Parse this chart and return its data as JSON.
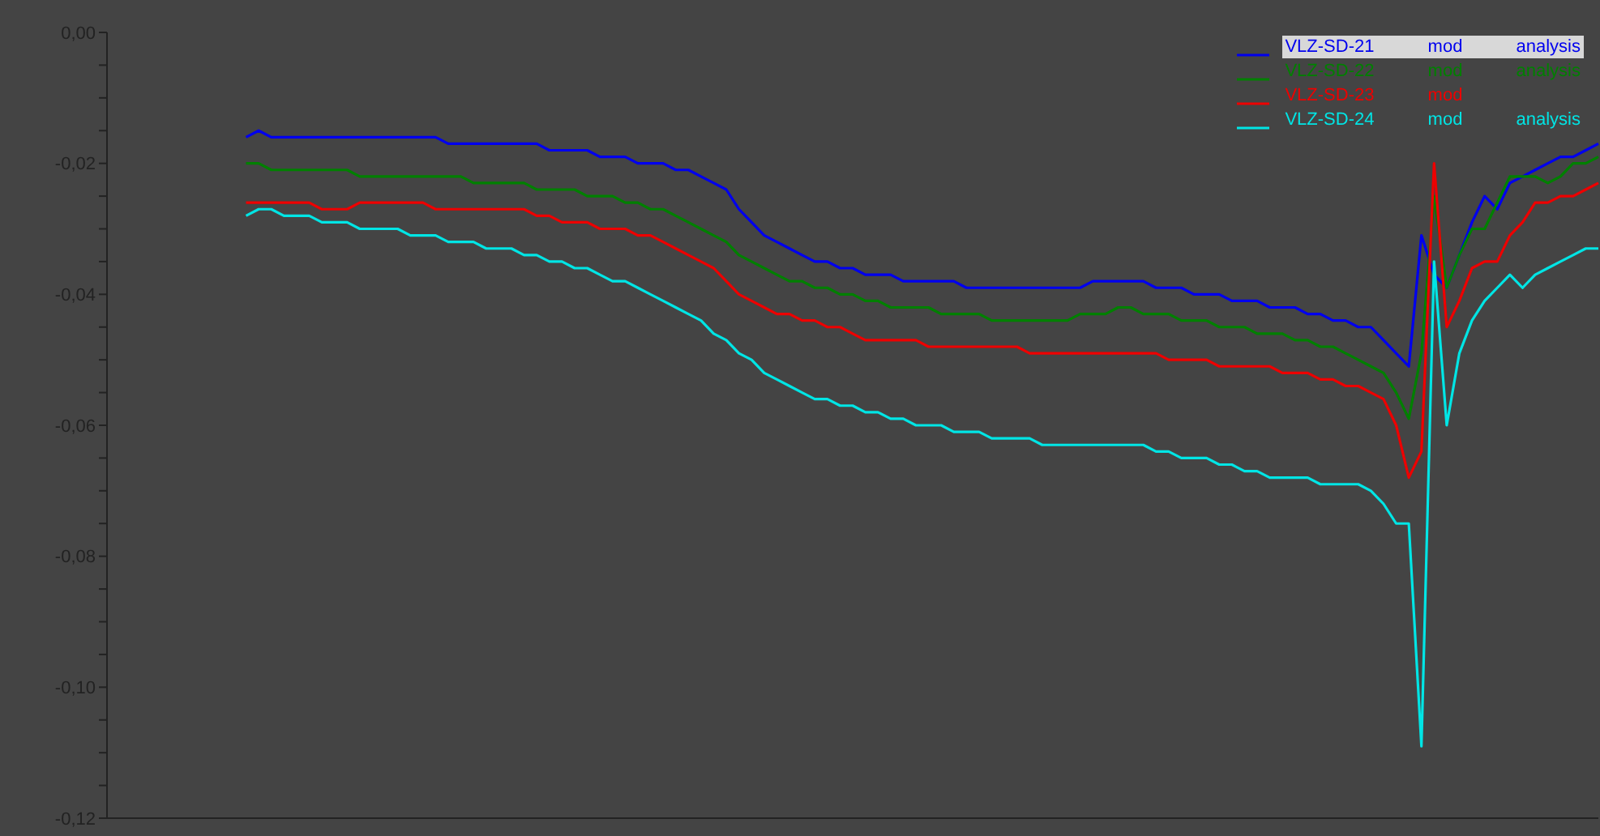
{
  "chart_data": {
    "type": "line",
    "categories": [
      null,
      null,
      null,
      null,
      null,
      null,
      null,
      null,
      null,
      null,
      null,
      null,
      null,
      null,
      null,
      null,
      null,
      null,
      null,
      null,
      null,
      null,
      null,
      null,
      null,
      null,
      null,
      null,
      null,
      null,
      null,
      null,
      null,
      null,
      null,
      null,
      null,
      null,
      null,
      null,
      null,
      null,
      null,
      null,
      null,
      null,
      null,
      null,
      null,
      null,
      null,
      null,
      null,
      null,
      null,
      null,
      null,
      null,
      null,
      null,
      null,
      null,
      null,
      null,
      null,
      null,
      null,
      null,
      null,
      null,
      null,
      null,
      null,
      null,
      null,
      null,
      null,
      null,
      null,
      null,
      null,
      null,
      null,
      null,
      null,
      null,
      null,
      null,
      null,
      null,
      null,
      null,
      null,
      null,
      null,
      null,
      null,
      null,
      null,
      null,
      null,
      null,
      null,
      null,
      null,
      null,
      null,
      null,
      null,
      null,
      null,
      null,
      null,
      null,
      null,
      null,
      null,
      null,
      null
    ],
    "series": [
      {
        "name": "VLZ-SD-21 mod analysis",
        "color": "#0000ee",
        "values": [
          null,
          null,
          null,
          null,
          null,
          null,
          null,
          null,
          null,
          null,
          null,
          -0.016,
          -0.015,
          -0.016,
          -0.016,
          -0.016,
          -0.016,
          -0.016,
          -0.016,
          -0.016,
          -0.016,
          -0.016,
          -0.016,
          -0.016,
          -0.016,
          -0.016,
          -0.016,
          -0.017,
          -0.017,
          -0.017,
          -0.017,
          -0.017,
          -0.017,
          -0.017,
          -0.017,
          -0.018,
          -0.018,
          -0.018,
          -0.018,
          -0.019,
          -0.019,
          -0.019,
          -0.02,
          -0.02,
          -0.02,
          -0.021,
          -0.021,
          -0.022,
          -0.023,
          -0.024,
          -0.027,
          -0.029,
          -0.031,
          -0.032,
          -0.033,
          -0.034,
          -0.035,
          -0.035,
          -0.036,
          -0.036,
          -0.037,
          -0.037,
          -0.037,
          -0.038,
          -0.038,
          -0.038,
          -0.038,
          -0.038,
          -0.039,
          -0.039,
          -0.039,
          -0.039,
          -0.039,
          -0.039,
          -0.039,
          -0.039,
          -0.039,
          -0.039,
          -0.038,
          -0.038,
          -0.038,
          -0.038,
          -0.038,
          -0.039,
          -0.039,
          -0.039,
          -0.04,
          -0.04,
          -0.04,
          -0.041,
          -0.041,
          -0.041,
          -0.042,
          -0.042,
          -0.042,
          -0.043,
          -0.043,
          -0.044,
          -0.044,
          -0.045,
          -0.045,
          -0.047,
          -0.049,
          -0.051,
          -0.031,
          -0.037,
          -0.039,
          -0.034,
          -0.029,
          -0.025,
          -0.027,
          -0.023,
          -0.022,
          -0.021,
          -0.02,
          -0.019,
          -0.019,
          -0.018,
          -0.017
        ]
      },
      {
        "name": "VLZ-SD-22 mod analysis",
        "color": "#008000",
        "values": [
          null,
          null,
          null,
          null,
          null,
          null,
          null,
          null,
          null,
          null,
          null,
          -0.02,
          -0.02,
          -0.021,
          -0.021,
          -0.021,
          -0.021,
          -0.021,
          -0.021,
          -0.021,
          -0.022,
          -0.022,
          -0.022,
          -0.022,
          -0.022,
          -0.022,
          -0.022,
          -0.022,
          -0.022,
          -0.023,
          -0.023,
          -0.023,
          -0.023,
          -0.023,
          -0.024,
          -0.024,
          -0.024,
          -0.024,
          -0.025,
          -0.025,
          -0.025,
          -0.026,
          -0.026,
          -0.027,
          -0.027,
          -0.028,
          -0.029,
          -0.03,
          -0.031,
          -0.032,
          -0.034,
          -0.035,
          -0.036,
          -0.037,
          -0.038,
          -0.038,
          -0.039,
          -0.039,
          -0.04,
          -0.04,
          -0.041,
          -0.041,
          -0.042,
          -0.042,
          -0.042,
          -0.042,
          -0.043,
          -0.043,
          -0.043,
          -0.043,
          -0.044,
          -0.044,
          -0.044,
          -0.044,
          -0.044,
          -0.044,
          -0.044,
          -0.043,
          -0.043,
          -0.043,
          -0.042,
          -0.042,
          -0.043,
          -0.043,
          -0.043,
          -0.044,
          -0.044,
          -0.044,
          -0.045,
          -0.045,
          -0.045,
          -0.046,
          -0.046,
          -0.046,
          -0.047,
          -0.047,
          -0.048,
          -0.048,
          -0.049,
          -0.05,
          -0.051,
          -0.052,
          -0.055,
          -0.059,
          -0.049,
          -0.025,
          -0.039,
          -0.034,
          -0.03,
          -0.03,
          -0.026,
          -0.022,
          -0.022,
          -0.022,
          -0.023,
          -0.022,
          -0.02,
          -0.02,
          -0.019
        ]
      },
      {
        "name": "VLZ-SD-23 mod",
        "color": "#ee0000",
        "values": [
          null,
          null,
          null,
          null,
          null,
          null,
          null,
          null,
          null,
          null,
          null,
          -0.026,
          -0.026,
          -0.026,
          -0.026,
          -0.026,
          -0.026,
          -0.027,
          -0.027,
          -0.027,
          -0.026,
          -0.026,
          -0.026,
          -0.026,
          -0.026,
          -0.026,
          -0.027,
          -0.027,
          -0.027,
          -0.027,
          -0.027,
          -0.027,
          -0.027,
          -0.027,
          -0.028,
          -0.028,
          -0.029,
          -0.029,
          -0.029,
          -0.03,
          -0.03,
          -0.03,
          -0.031,
          -0.031,
          -0.032,
          -0.033,
          -0.034,
          -0.035,
          -0.036,
          -0.038,
          -0.04,
          -0.041,
          -0.042,
          -0.043,
          -0.043,
          -0.044,
          -0.044,
          -0.045,
          -0.045,
          -0.046,
          -0.047,
          -0.047,
          -0.047,
          -0.047,
          -0.047,
          -0.048,
          -0.048,
          -0.048,
          -0.048,
          -0.048,
          -0.048,
          -0.048,
          -0.048,
          -0.049,
          -0.049,
          -0.049,
          -0.049,
          -0.049,
          -0.049,
          -0.049,
          -0.049,
          -0.049,
          -0.049,
          -0.049,
          -0.05,
          -0.05,
          -0.05,
          -0.05,
          -0.051,
          -0.051,
          -0.051,
          -0.051,
          -0.051,
          -0.052,
          -0.052,
          -0.052,
          -0.053,
          -0.053,
          -0.054,
          -0.054,
          -0.055,
          -0.056,
          -0.06,
          -0.068,
          -0.064,
          -0.02,
          -0.045,
          -0.041,
          -0.036,
          -0.035,
          -0.035,
          -0.031,
          -0.029,
          -0.026,
          -0.026,
          -0.025,
          -0.025,
          -0.024,
          -0.023
        ]
      },
      {
        "name": "VLZ-SD-24 mod analysis",
        "color": "#00e5e5",
        "values": [
          null,
          null,
          null,
          null,
          null,
          null,
          null,
          null,
          null,
          null,
          null,
          -0.028,
          -0.027,
          -0.027,
          -0.028,
          -0.028,
          -0.028,
          -0.029,
          -0.029,
          -0.029,
          -0.03,
          -0.03,
          -0.03,
          -0.03,
          -0.031,
          -0.031,
          -0.031,
          -0.032,
          -0.032,
          -0.032,
          -0.033,
          -0.033,
          -0.033,
          -0.034,
          -0.034,
          -0.035,
          -0.035,
          -0.036,
          -0.036,
          -0.037,
          -0.038,
          -0.038,
          -0.039,
          -0.04,
          -0.041,
          -0.042,
          -0.043,
          -0.044,
          -0.046,
          -0.047,
          -0.049,
          -0.05,
          -0.052,
          -0.053,
          -0.054,
          -0.055,
          -0.056,
          -0.056,
          -0.057,
          -0.057,
          -0.058,
          -0.058,
          -0.059,
          -0.059,
          -0.06,
          -0.06,
          -0.06,
          -0.061,
          -0.061,
          -0.061,
          -0.062,
          -0.062,
          -0.062,
          -0.062,
          -0.063,
          -0.063,
          -0.063,
          -0.063,
          -0.063,
          -0.063,
          -0.063,
          -0.063,
          -0.063,
          -0.064,
          -0.064,
          -0.065,
          -0.065,
          -0.065,
          -0.066,
          -0.066,
          -0.067,
          -0.067,
          -0.068,
          -0.068,
          -0.068,
          -0.068,
          -0.069,
          -0.069,
          -0.069,
          -0.069,
          -0.07,
          -0.072,
          -0.075,
          -0.075,
          -0.109,
          -0.035,
          -0.06,
          -0.049,
          -0.044,
          -0.041,
          -0.039,
          -0.037,
          -0.039,
          -0.037,
          -0.036,
          -0.035,
          -0.034,
          -0.033,
          -0.033
        ]
      }
    ],
    "ylim": [
      -0.12,
      0
    ],
    "yticks": [
      {
        "value": -0.12,
        "label": "-0,12"
      },
      {
        "value": -0.115,
        "label": null
      },
      {
        "value": -0.11,
        "label": null
      },
      {
        "value": -0.105,
        "label": null
      },
      {
        "value": -0.1,
        "label": "-0,10"
      },
      {
        "value": -0.095,
        "label": null
      },
      {
        "value": -0.09,
        "label": null
      },
      {
        "value": -0.085,
        "label": null
      },
      {
        "value": -0.08,
        "label": "-0,08"
      },
      {
        "value": -0.075,
        "label": null
      },
      {
        "value": -0.07,
        "label": null
      },
      {
        "value": -0.065,
        "label": null
      },
      {
        "value": -0.06,
        "label": "-0,06"
      },
      {
        "value": -0.055,
        "label": null
      },
      {
        "value": -0.05,
        "label": null
      },
      {
        "value": -0.045,
        "label": null
      },
      {
        "value": -0.04,
        "label": "-0,04"
      },
      {
        "value": -0.035,
        "label": null
      },
      {
        "value": -0.03,
        "label": null
      },
      {
        "value": -0.025,
        "label": null
      },
      {
        "value": -0.02,
        "label": "-0,02"
      },
      {
        "value": -0.015,
        "label": null
      },
      {
        "value": -0.01,
        "label": null
      },
      {
        "value": -0.005,
        "label": null
      },
      {
        "value": 0,
        "label": "0,00"
      }
    ],
    "tick_labels": "y",
    "legend": "top right",
    "marker": "none",
    "line_style": "solid"
  }
}
